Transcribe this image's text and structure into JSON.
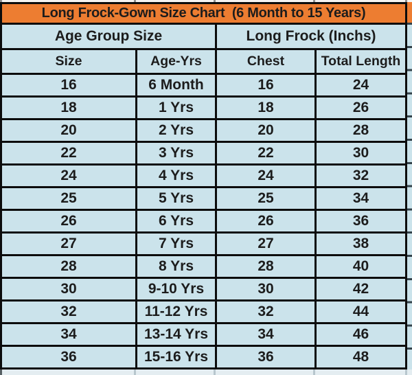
{
  "title": "Long Frock-Gown Size Chart  (6 Month to 15 Years)",
  "colors": {
    "header_orange": "#ED7D31",
    "cell_blue": "#CBE3EB",
    "grid_black": "#0C0C0C",
    "text": "#1C1C1C"
  },
  "chart_data": {
    "type": "table",
    "title": "Long Frock-Gown Size Chart  (6 Month to 15 Years)",
    "group_headers": [
      "Age Group Size",
      "Long Frock (Inchs)"
    ],
    "columns": [
      "Size",
      "Age-Yrs",
      "Chest",
      "Total Length"
    ],
    "rows": [
      [
        "16",
        "6 Month",
        "16",
        "24"
      ],
      [
        "18",
        "1 Yrs",
        "18",
        "26"
      ],
      [
        "20",
        "2 Yrs",
        "20",
        "28"
      ],
      [
        "22",
        "3 Yrs",
        "22",
        "30"
      ],
      [
        "24",
        "4 Yrs",
        "24",
        "32"
      ],
      [
        "25",
        "5 Yrs",
        "25",
        "34"
      ],
      [
        "26",
        "6 Yrs",
        "26",
        "36"
      ],
      [
        "27",
        "7 Yrs",
        "27",
        "38"
      ],
      [
        "28",
        "8 Yrs",
        "28",
        "40"
      ],
      [
        "30",
        "9-10 Yrs",
        "30",
        "42"
      ],
      [
        "32",
        "11-12 Yrs",
        "32",
        "44"
      ],
      [
        "34",
        "13-14 Yrs",
        "34",
        "46"
      ],
      [
        "36",
        "15-16 Yrs",
        "36",
        "48"
      ]
    ],
    "units": "Inchs",
    "layout": {
      "grid": "on",
      "header_fill": "orange",
      "body_fill": "light-blue"
    }
  }
}
